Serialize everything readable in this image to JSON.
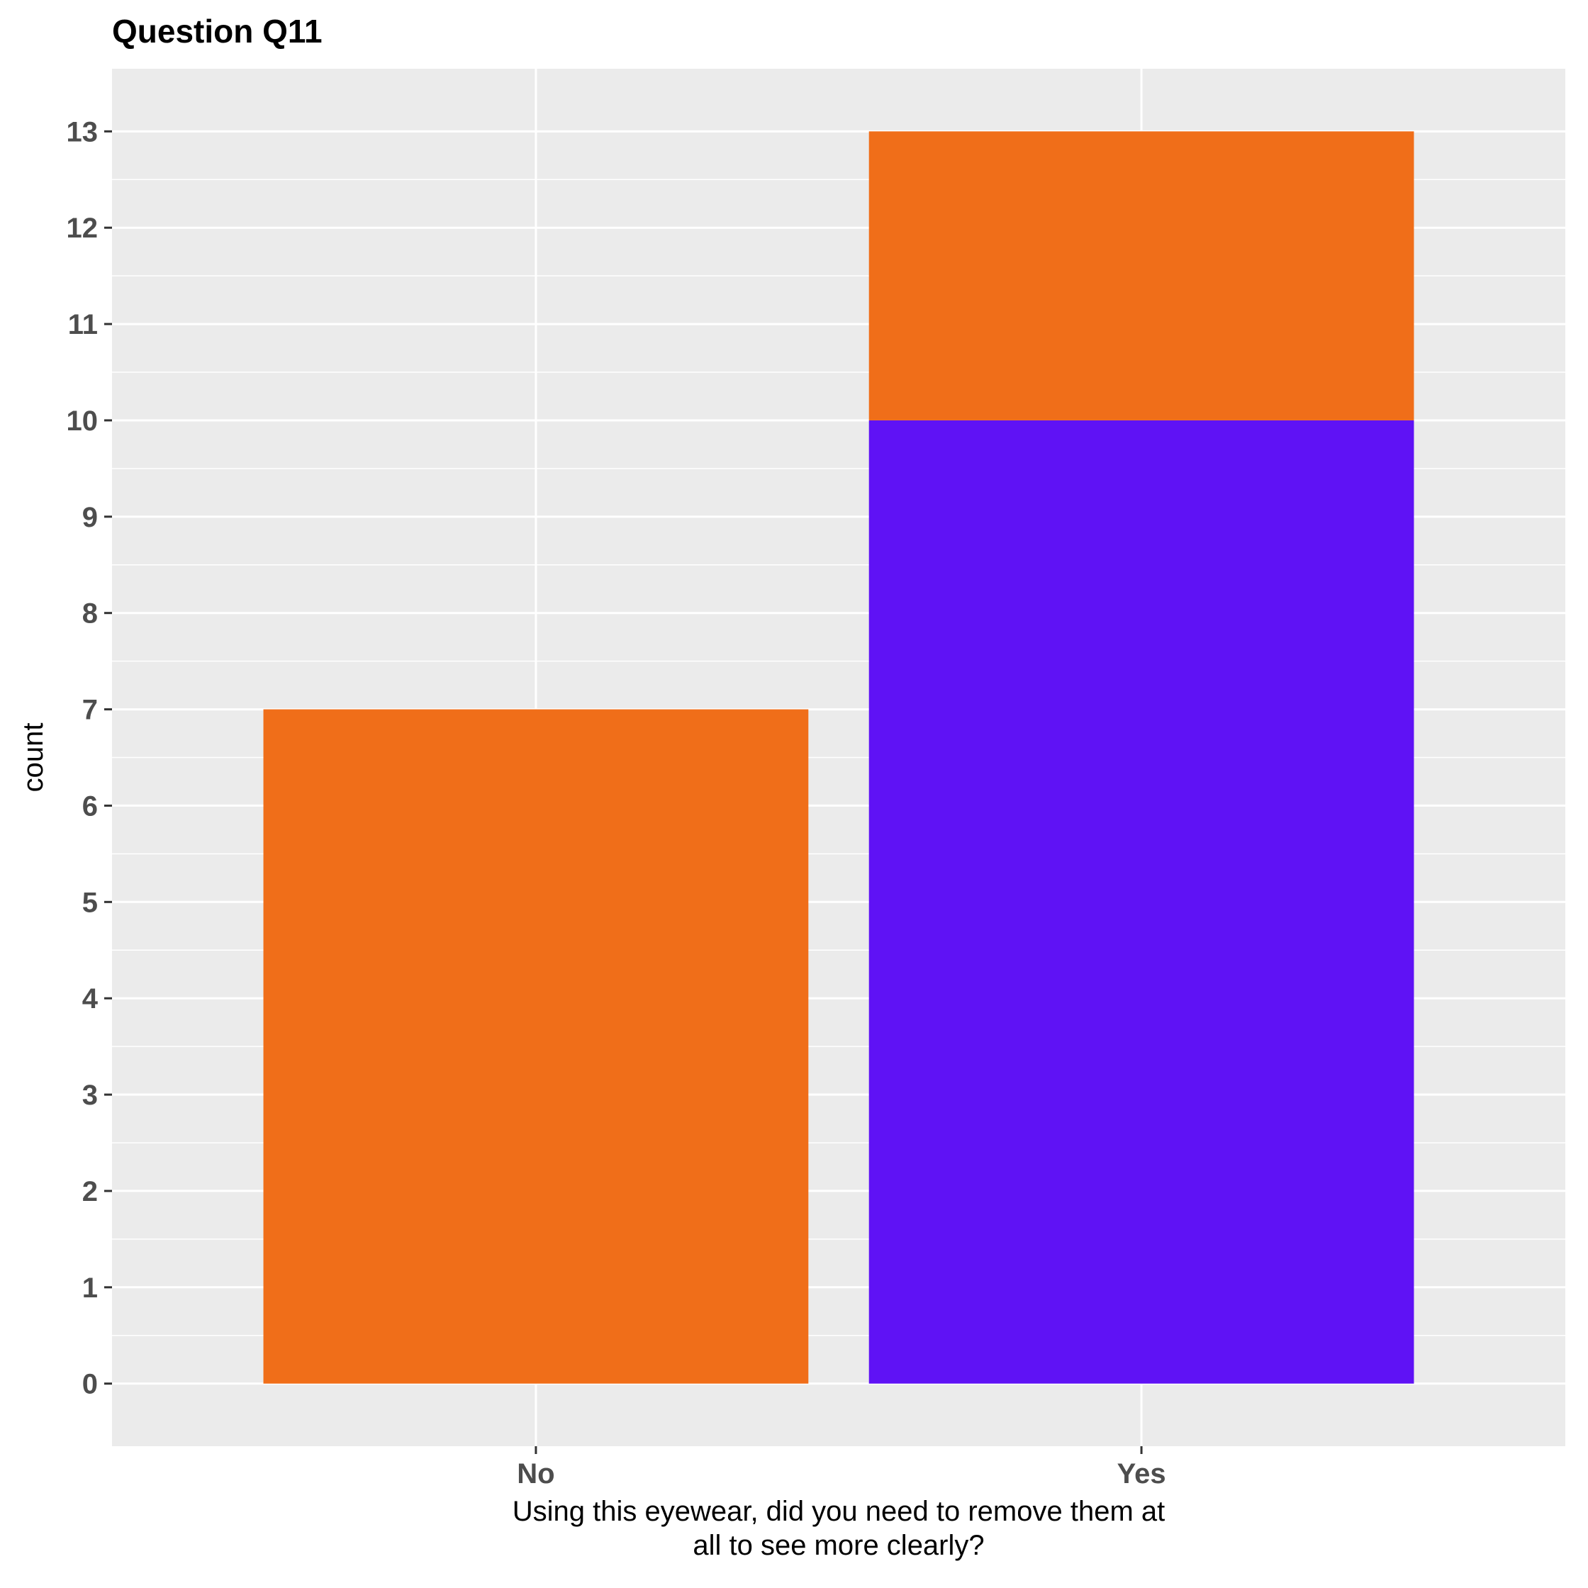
{
  "chart_data": {
    "type": "bar",
    "stacked": true,
    "title": "Question Q11",
    "xlabel_lines": [
      "Using this eyewear, did you need to remove them at",
      "all to see more clearly?"
    ],
    "ylabel": "count",
    "categories": [
      "No",
      "Yes"
    ],
    "series": [
      {
        "color": "#f06e19",
        "values": [
          7,
          3
        ]
      },
      {
        "color": "#5f12f5",
        "values": [
          0,
          10
        ]
      }
    ],
    "ylim": [
      -0.65,
      13.65
    ],
    "yticks": [
      0,
      1,
      2,
      3,
      4,
      5,
      6,
      7,
      8,
      9,
      10,
      11,
      12,
      13
    ],
    "grid": true,
    "legend": "none",
    "panel_color": "#ebebeb",
    "gridline_color": "#ffffff"
  }
}
